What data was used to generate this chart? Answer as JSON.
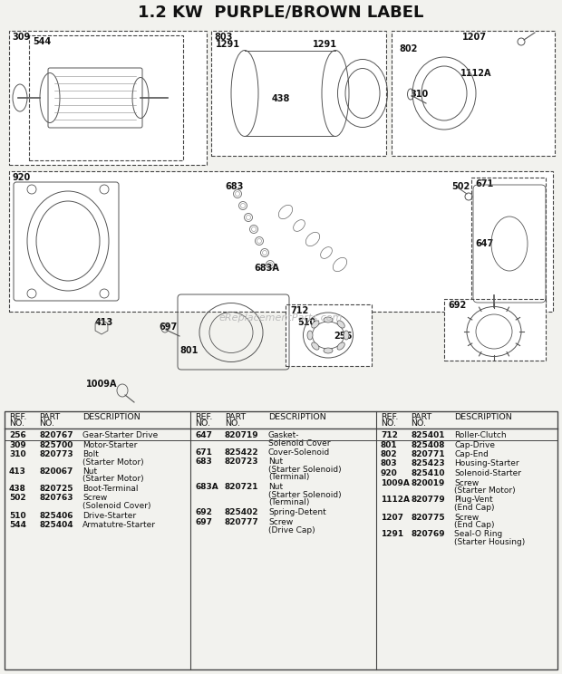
{
  "title": "1.2 KW  PURPLE/BROWN LABEL",
  "bg_color": "#f2f2ee",
  "line_color": "#444444",
  "text_color": "#111111",
  "watermark": "eReplacementParts.com",
  "col1_parts": [
    {
      "ref": "256",
      "part": "820767",
      "desc": [
        "Gear-Starter Drive"
      ]
    },
    {
      "ref": "309",
      "part": "825700",
      "desc": [
        "Motor-Starter"
      ]
    },
    {
      "ref": "310",
      "part": "820773",
      "desc": [
        "Bolt",
        "(Starter Motor)"
      ]
    },
    {
      "ref": "413",
      "part": "820067",
      "desc": [
        "Nut",
        "(Starter Motor)"
      ]
    },
    {
      "ref": "438",
      "part": "820725",
      "desc": [
        "Boot-Terminal"
      ]
    },
    {
      "ref": "502",
      "part": "820763",
      "desc": [
        "Screw",
        "(Solenoid Cover)"
      ]
    },
    {
      "ref": "510",
      "part": "825406",
      "desc": [
        "Drive-Starter"
      ]
    },
    {
      "ref": "544",
      "part": "825404",
      "desc": [
        "Armatutre-Starter"
      ]
    }
  ],
  "col2_parts": [
    {
      "ref": "647",
      "part": "820719",
      "desc": [
        "Gasket-",
        "Solenoid Cover"
      ]
    },
    {
      "ref": "671",
      "part": "825422",
      "desc": [
        "Cover-Solenoid"
      ]
    },
    {
      "ref": "683",
      "part": "820723",
      "desc": [
        "Nut",
        "(Starter Solenoid)",
        "(Terminal)"
      ]
    },
    {
      "ref": "683A",
      "part": "820721",
      "desc": [
        "Nut",
        "(Starter Solenoid)",
        "(Terminal)"
      ]
    },
    {
      "ref": "692",
      "part": "825402",
      "desc": [
        "Spring-Detent"
      ]
    },
    {
      "ref": "697",
      "part": "820777",
      "desc": [
        "Screw",
        "(Drive Cap)"
      ]
    }
  ],
  "col3_parts": [
    {
      "ref": "712",
      "part": "825401",
      "desc": [
        "Roller-Clutch"
      ]
    },
    {
      "ref": "801",
      "part": "825408",
      "desc": [
        "Cap-Drive"
      ]
    },
    {
      "ref": "802",
      "part": "820771",
      "desc": [
        "Cap-End"
      ]
    },
    {
      "ref": "803",
      "part": "825423",
      "desc": [
        "Housing-Starter"
      ]
    },
    {
      "ref": "920",
      "part": "825410",
      "desc": [
        "Solenoid-Starter"
      ]
    },
    {
      "ref": "1009A",
      "part": "820019",
      "desc": [
        "Screw",
        "(Starter Motor)"
      ]
    },
    {
      "ref": "1112A",
      "part": "820779",
      "desc": [
        "Plug-Vent",
        "(End Cap)"
      ]
    },
    {
      "ref": "1207",
      "part": "820775",
      "desc": [
        "Screw",
        "(End Cap)"
      ]
    },
    {
      "ref": "1291",
      "part": "820769",
      "desc": [
        "Seal-O Ring",
        "(Starter Housing)"
      ]
    }
  ]
}
